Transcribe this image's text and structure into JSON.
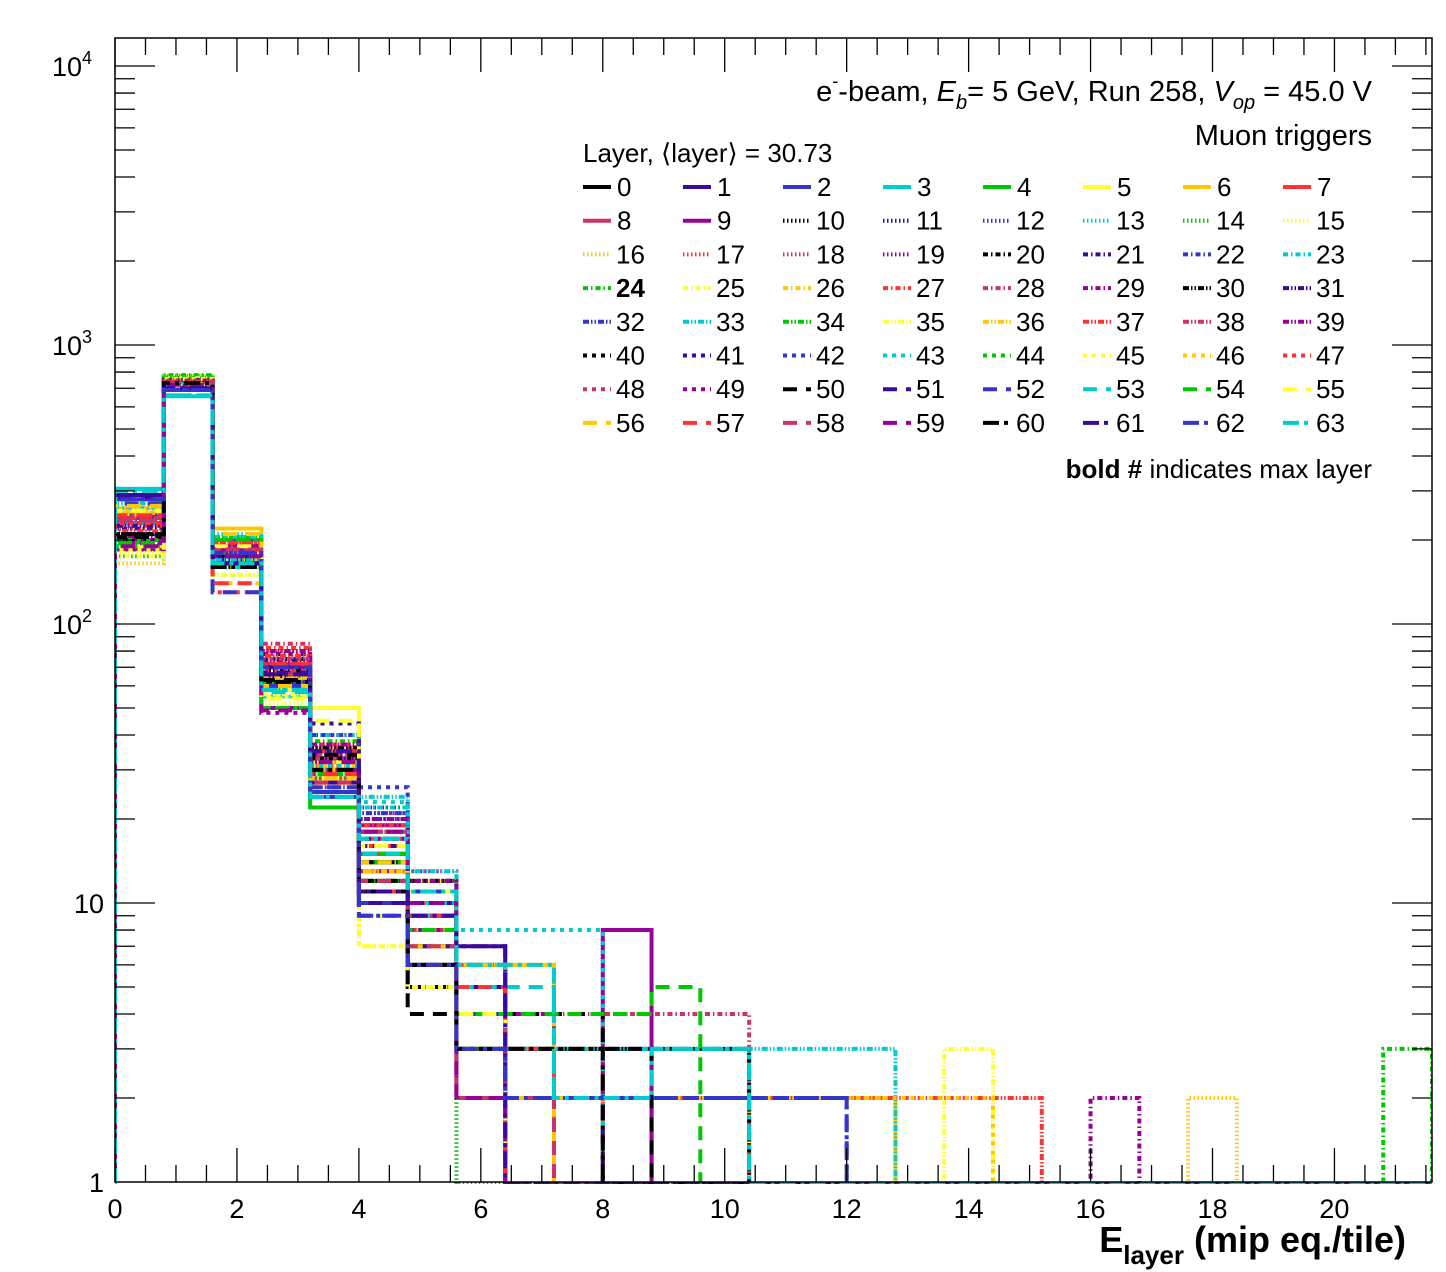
{
  "chart_data": {
    "type": "histogram-step",
    "title_parts": {
      "e": "e",
      "sup": "-",
      "beam": "-beam, ",
      "E": "E",
      "b": "b",
      "energy": "= 5 GeV, Run 258, ",
      "V": "V",
      "op": "op",
      "voltage": " = 45.0 V"
    },
    "subtitle": "Muon triggers",
    "legend_header": "Layer, ⟨layer⟩ = 30.73",
    "footnote_bold": "bold #",
    "footnote_rest": " indicates max layer",
    "max_layer": 24,
    "xlabel_main": "E",
    "xlabel_sub": "layer",
    "xlabel_rest": " (mip eq./tile)",
    "x_ticks": [
      "0",
      "2",
      "4",
      "6",
      "8",
      "10",
      "12",
      "14",
      "16",
      "18",
      "20"
    ],
    "y_ticks": [
      {
        "base": "1",
        "exp": ""
      },
      {
        "base": "10",
        "exp": ""
      },
      {
        "base": "10",
        "exp": "2"
      },
      {
        "base": "10",
        "exp": "3"
      },
      {
        "base": "10",
        "exp": "4"
      }
    ],
    "xlim": [
      0,
      21.6
    ],
    "ylim": [
      1,
      12600
    ],
    "yscale": "log",
    "bin_width": 0.8,
    "n_bins": 27,
    "palette": [
      "#000000",
      "#3a0a9e",
      "#3535cc",
      "#00cccc",
      "#00c800",
      "#ffff33",
      "#ffc800",
      "#ff3333",
      "#cc3366",
      "#990099"
    ],
    "layers": [
      {
        "name": "0",
        "values": [
          200,
          740,
          160,
          62,
          30,
          12,
          5,
          3,
          3
        ]
      },
      {
        "name": "1",
        "values": [
          290,
          700,
          165,
          66,
          33,
          11,
          9,
          7
        ]
      },
      {
        "name": "2",
        "values": [
          280,
          690,
          175,
          70,
          25,
          10,
          6,
          2
        ]
      },
      {
        "name": "3",
        "values": [
          305,
          655,
          165,
          58,
          24,
          17,
          11,
          6,
          2,
          2,
          2,
          3,
          3
        ]
      },
      {
        "name": "4",
        "values": [
          190,
          740,
          200,
          58,
          22,
          15,
          7,
          5
        ]
      },
      {
        "name": "5",
        "values": [
          250,
          720,
          190,
          55,
          50,
          16,
          12,
          4,
          2,
          2,
          2,
          2,
          2
        ]
      },
      {
        "name": "6",
        "values": [
          260,
          730,
          220,
          60,
          27,
          14,
          10,
          5,
          6,
          3,
          2,
          2,
          2,
          2,
          2,
          2
        ]
      },
      {
        "name": "7",
        "values": [
          240,
          760,
          190,
          72,
          30,
          15,
          9,
          5,
          3
        ]
      },
      {
        "name": "8",
        "values": [
          230,
          750,
          185,
          65,
          28,
          13,
          7,
          2,
          2,
          2
        ]
      },
      {
        "name": "9",
        "values": [
          185,
          720,
          175,
          50,
          32,
          19,
          9,
          2,
          2,
          2,
          8
        ]
      },
      {
        "name": "10",
        "values": [
          210,
          770,
          170,
          75,
          35,
          18,
          6,
          4
        ]
      },
      {
        "name": "11",
        "values": [
          200,
          760,
          180,
          70,
          40,
          20,
          8,
          3
        ]
      },
      {
        "name": "12",
        "values": [
          280,
          740,
          190,
          60,
          30,
          22,
          10,
          4
        ]
      },
      {
        "name": "13",
        "values": [
          230,
          760,
          210,
          55,
          34,
          15,
          7,
          3,
          2
        ]
      },
      {
        "name": "14",
        "values": [
          175,
          775,
          200,
          62,
          28,
          12,
          6
        ]
      },
      {
        "name": "15",
        "values": [
          180,
          770,
          150,
          52,
          38,
          16,
          7,
          5
        ]
      },
      {
        "name": "16",
        "values": [
          165,
          760,
          170,
          68,
          32,
          14,
          9,
          5,
          3,
          2,
          0,
          0,
          0,
          0,
          0,
          0,
          0,
          0,
          0,
          0,
          0,
          0,
          2
        ]
      },
      {
        "name": "17",
        "values": [
          220,
          750,
          195,
          80,
          36,
          17,
          10,
          6
        ]
      },
      {
        "name": "18",
        "values": [
          235,
          740,
          185,
          75,
          31,
          19,
          8,
          4
        ]
      },
      {
        "name": "19",
        "values": [
          190,
          760,
          190,
          72,
          29,
          21,
          13,
          5
        ]
      },
      {
        "name": "20",
        "values": [
          205,
          750,
          175,
          65,
          35,
          16,
          12,
          4
        ]
      },
      {
        "name": "21",
        "values": [
          220,
          745,
          170,
          78,
          33,
          18,
          10,
          6
        ]
      },
      {
        "name": "22",
        "values": [
          240,
          735,
          200,
          66,
          30,
          20,
          9,
          5
        ]
      },
      {
        "name": "23",
        "values": [
          260,
          730,
          205,
          58,
          40,
          22,
          8,
          3
        ]
      },
      {
        "name": "24",
        "values": [
          190,
          780,
          200,
          60,
          38,
          14,
          9,
          3,
          0,
          0,
          0,
          0,
          0,
          0,
          0,
          0,
          0,
          0,
          0,
          0,
          0,
          0,
          0,
          0,
          0,
          0,
          3
        ]
      },
      {
        "name": "25",
        "values": [
          175,
          760,
          165,
          55,
          28,
          7,
          5,
          3
        ]
      },
      {
        "name": "26",
        "values": [
          245,
          750,
          180,
          64,
          30,
          14,
          7,
          6,
          6
        ]
      },
      {
        "name": "27",
        "values": [
          225,
          755,
          195,
          82,
          37,
          19,
          11,
          5
        ]
      },
      {
        "name": "28",
        "values": [
          235,
          740,
          200,
          85,
          36,
          15,
          9,
          5,
          4,
          4,
          4,
          4,
          4
        ]
      },
      {
        "name": "29",
        "values": [
          200,
          745,
          180,
          70,
          34,
          13,
          6,
          5,
          4,
          3,
          3,
          0,
          0,
          0,
          0,
          0,
          0,
          0,
          0,
          0,
          2
        ]
      },
      {
        "name": "30",
        "values": [
          210,
          750,
          190,
          68,
          36,
          14,
          12,
          4,
          3,
          3,
          3,
          3,
          3
        ]
      },
      {
        "name": "31",
        "values": [
          225,
          745,
          175,
          74,
          33,
          16,
          10,
          6
        ]
      },
      {
        "name": "32",
        "values": [
          245,
          740,
          185,
          66,
          26,
          21,
          11,
          4
        ]
      },
      {
        "name": "33",
        "values": [
          270,
          735,
          170,
          60,
          30,
          24,
          13,
          6,
          3,
          3,
          3,
          3,
          3,
          3,
          3,
          3
        ]
      },
      {
        "name": "34",
        "values": [
          195,
          765,
          205,
          62,
          29,
          15,
          8,
          3
        ]
      },
      {
        "name": "35",
        "values": [
          190,
          760,
          160,
          58,
          32,
          9,
          6,
          4,
          0,
          0,
          0,
          0,
          0,
          0,
          0,
          0,
          0,
          3
        ]
      },
      {
        "name": "36",
        "values": [
          250,
          745,
          180,
          64,
          31,
          13,
          8,
          6,
          6
        ]
      },
      {
        "name": "37",
        "values": [
          215,
          750,
          195,
          77,
          35,
          15,
          10,
          5,
          3,
          2,
          2,
          2,
          2,
          2,
          2,
          2,
          2,
          2,
          2
        ]
      },
      {
        "name": "38",
        "values": [
          240,
          740,
          190,
          72,
          33,
          18,
          9,
          4
        ]
      },
      {
        "name": "39",
        "values": [
          205,
          750,
          185,
          80,
          37,
          20,
          12,
          4
        ]
      },
      {
        "name": "40",
        "values": [
          210,
          745,
          165,
          66,
          33,
          14,
          10,
          5
        ]
      },
      {
        "name": "41",
        "values": [
          230,
          740,
          175,
          70,
          44,
          17,
          10,
          5
        ]
      },
      {
        "name": "42",
        "values": [
          255,
          730,
          180,
          62,
          40,
          26,
          11,
          4
        ]
      },
      {
        "name": "43",
        "values": [
          290,
          725,
          205,
          55,
          31,
          23,
          10,
          8,
          8,
          8
        ]
      },
      {
        "name": "44",
        "values": [
          200,
          760,
          200,
          50,
          29,
          15,
          7,
          3
        ]
      },
      {
        "name": "45",
        "values": [
          185,
          755,
          150,
          56,
          27,
          7,
          5,
          3
        ]
      },
      {
        "name": "46",
        "values": [
          255,
          735,
          140,
          60,
          30,
          13,
          7,
          4,
          2,
          2,
          2,
          2,
          2,
          2,
          2,
          2,
          2,
          2
        ]
      },
      {
        "name": "47",
        "values": [
          230,
          740,
          130,
          68,
          35,
          16,
          9,
          4
        ]
      },
      {
        "name": "48",
        "values": [
          245,
          735,
          185,
          75,
          34,
          18,
          8,
          5
        ]
      },
      {
        "name": "49",
        "values": [
          195,
          745,
          190,
          48,
          30,
          17,
          8,
          3
        ]
      },
      {
        "name": "50",
        "values": [
          205,
          725,
          165,
          63,
          34,
          12,
          4,
          4,
          4,
          4,
          3
        ]
      },
      {
        "name": "51",
        "values": [
          285,
          700,
          165,
          67,
          27,
          10,
          7,
          5,
          2,
          2
        ]
      },
      {
        "name": "52",
        "values": [
          270,
          690,
          130,
          60,
          26,
          9,
          6,
          4,
          2,
          2,
          2,
          2,
          2,
          2,
          2
        ]
      },
      {
        "name": "53",
        "values": [
          305,
          660,
          160,
          57,
          24,
          15,
          9,
          5,
          5
        ]
      },
      {
        "name": "54",
        "values": [
          195,
          735,
          200,
          50,
          22,
          14,
          8,
          4,
          4,
          4,
          4,
          5
        ]
      },
      {
        "name": "55",
        "values": [
          255,
          715,
          190,
          54,
          45,
          16,
          11,
          4
        ]
      },
      {
        "name": "56",
        "values": [
          265,
          725,
          210,
          60,
          28,
          14,
          7,
          2,
          2
        ]
      },
      {
        "name": "57",
        "values": [
          245,
          740,
          140,
          72,
          29,
          11,
          9,
          5
        ]
      },
      {
        "name": "58",
        "values": [
          235,
          740,
          185,
          66,
          27,
          12,
          7,
          2,
          2
        ]
      },
      {
        "name": "59",
        "values": [
          190,
          720,
          175,
          49,
          32,
          18,
          10,
          2
        ]
      },
      {
        "name": "60",
        "values": [
          210,
          730,
          160,
          62,
          30,
          11,
          6,
          3,
          3,
          3
        ]
      },
      {
        "name": "61",
        "values": [
          290,
          700,
          165,
          66,
          35,
          11,
          9,
          7
        ]
      },
      {
        "name": "62",
        "values": [
          280,
          690,
          180,
          70,
          24,
          9,
          6,
          3,
          2,
          2,
          2,
          2,
          2,
          2,
          2
        ]
      },
      {
        "name": "63",
        "values": [
          300,
          660,
          165,
          58,
          24,
          17,
          11,
          6,
          6,
          2,
          2,
          3,
          3
        ]
      }
    ]
  }
}
